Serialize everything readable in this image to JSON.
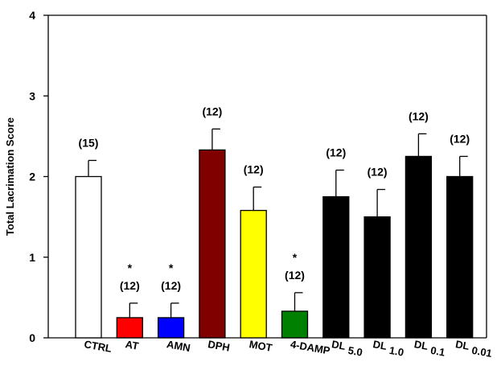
{
  "chart_data": {
    "type": "bar",
    "title": "",
    "xlabel": "",
    "ylabel": "Total Lacrimation Score",
    "ylim": [
      0,
      4
    ],
    "yticks": [
      0,
      1,
      2,
      3,
      4
    ],
    "grid": false,
    "legend": "none",
    "categories": [
      "CTRL",
      "AT",
      "AMN",
      "DPH",
      "MOT",
      "4-DAMP",
      "DL 5.0",
      "DL 1.0",
      "DL 0.1",
      "DL 0.01"
    ],
    "tick_labels": [
      {
        "main": "CTRL",
        "sub": ""
      },
      {
        "main": "AT",
        "sub": ""
      },
      {
        "main": "AMN",
        "sub": ""
      },
      {
        "main": "DPH",
        "sub": ""
      },
      {
        "main": "MOT",
        "sub": ""
      },
      {
        "main": "4-DAMP",
        "sub": ""
      },
      {
        "main": "DL",
        "sub": "5.0"
      },
      {
        "main": "DL",
        "sub": "1.0"
      },
      {
        "main": "DL",
        "sub": "0.1"
      },
      {
        "main": "DL",
        "sub": "0.01"
      }
    ],
    "values": [
      2.0,
      0.25,
      0.25,
      2.33,
      1.58,
      0.33,
      1.75,
      1.5,
      2.25,
      2.0
    ],
    "errors": [
      0.2,
      0.18,
      0.18,
      0.26,
      0.29,
      0.23,
      0.33,
      0.34,
      0.28,
      0.25
    ],
    "n_labels": [
      "(15)",
      "(12)",
      "(12)",
      "(12)",
      "(12)",
      "(12)",
      "(12)",
      "(12)",
      "(12)",
      "(12)"
    ],
    "significance": [
      "",
      "*",
      "*",
      "",
      "",
      "*",
      "",
      "",
      "",
      ""
    ],
    "colors": [
      "#ffffff",
      "#ff0000",
      "#0000ff",
      "#800000",
      "#ffff00",
      "#008000",
      "#000000",
      "#000000",
      "#000000",
      "#000000"
    ]
  }
}
